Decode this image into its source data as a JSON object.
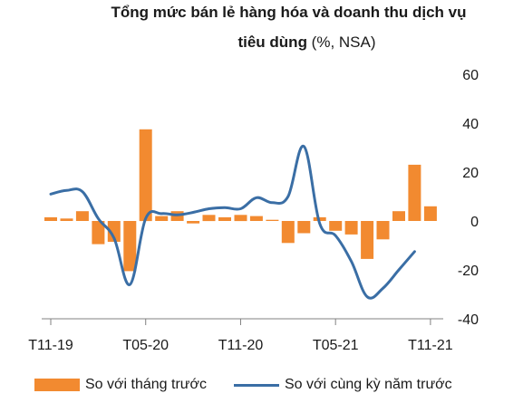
{
  "chart_data": {
    "type": "bar",
    "title_line1": "Tổng mức bán lẻ hàng hóa và doanh thu dịch vụ",
    "title_line2_bold": "tiêu dùng",
    "title_line2_rest": " (%, NSA)",
    "x_tick_labels": [
      "T11-19",
      "T05-20",
      "T11-20",
      "T05-21",
      "T11-21"
    ],
    "x_tick_index": [
      0,
      6,
      12,
      18,
      24
    ],
    "ylim": [
      -40,
      60
    ],
    "y_ticks": [
      60,
      40,
      20,
      0,
      -20,
      -40
    ],
    "y_tick_labels": [
      "60",
      "40",
      "20",
      "0",
      "-20",
      "-40"
    ],
    "y_axis_side": "right",
    "grid": false,
    "legend_position": "bottom",
    "colors": {
      "bars": "#f28a30",
      "line": "#3a6ea5"
    },
    "series": [
      {
        "name": "So với tháng trước",
        "type": "bar",
        "values": [
          1.5,
          1,
          4,
          -9.5,
          -8.5,
          -20.5,
          37.5,
          2,
          4,
          -1,
          2.5,
          1.5,
          2.5,
          2,
          0.5,
          -9,
          -5,
          1.5,
          -4,
          -5.5,
          -15.5,
          -7.5,
          4,
          23,
          6
        ]
      },
      {
        "name": "So với cùng kỳ năm trước",
        "type": "line",
        "values": [
          11,
          12.5,
          12,
          1,
          -7,
          -26,
          1,
          3,
          2.5,
          3.5,
          5,
          5.5,
          5,
          9.5,
          7.5,
          10,
          30.5,
          -1,
          -6,
          -16.5,
          -31,
          -27.5,
          -20,
          -12.5
        ]
      }
    ]
  }
}
